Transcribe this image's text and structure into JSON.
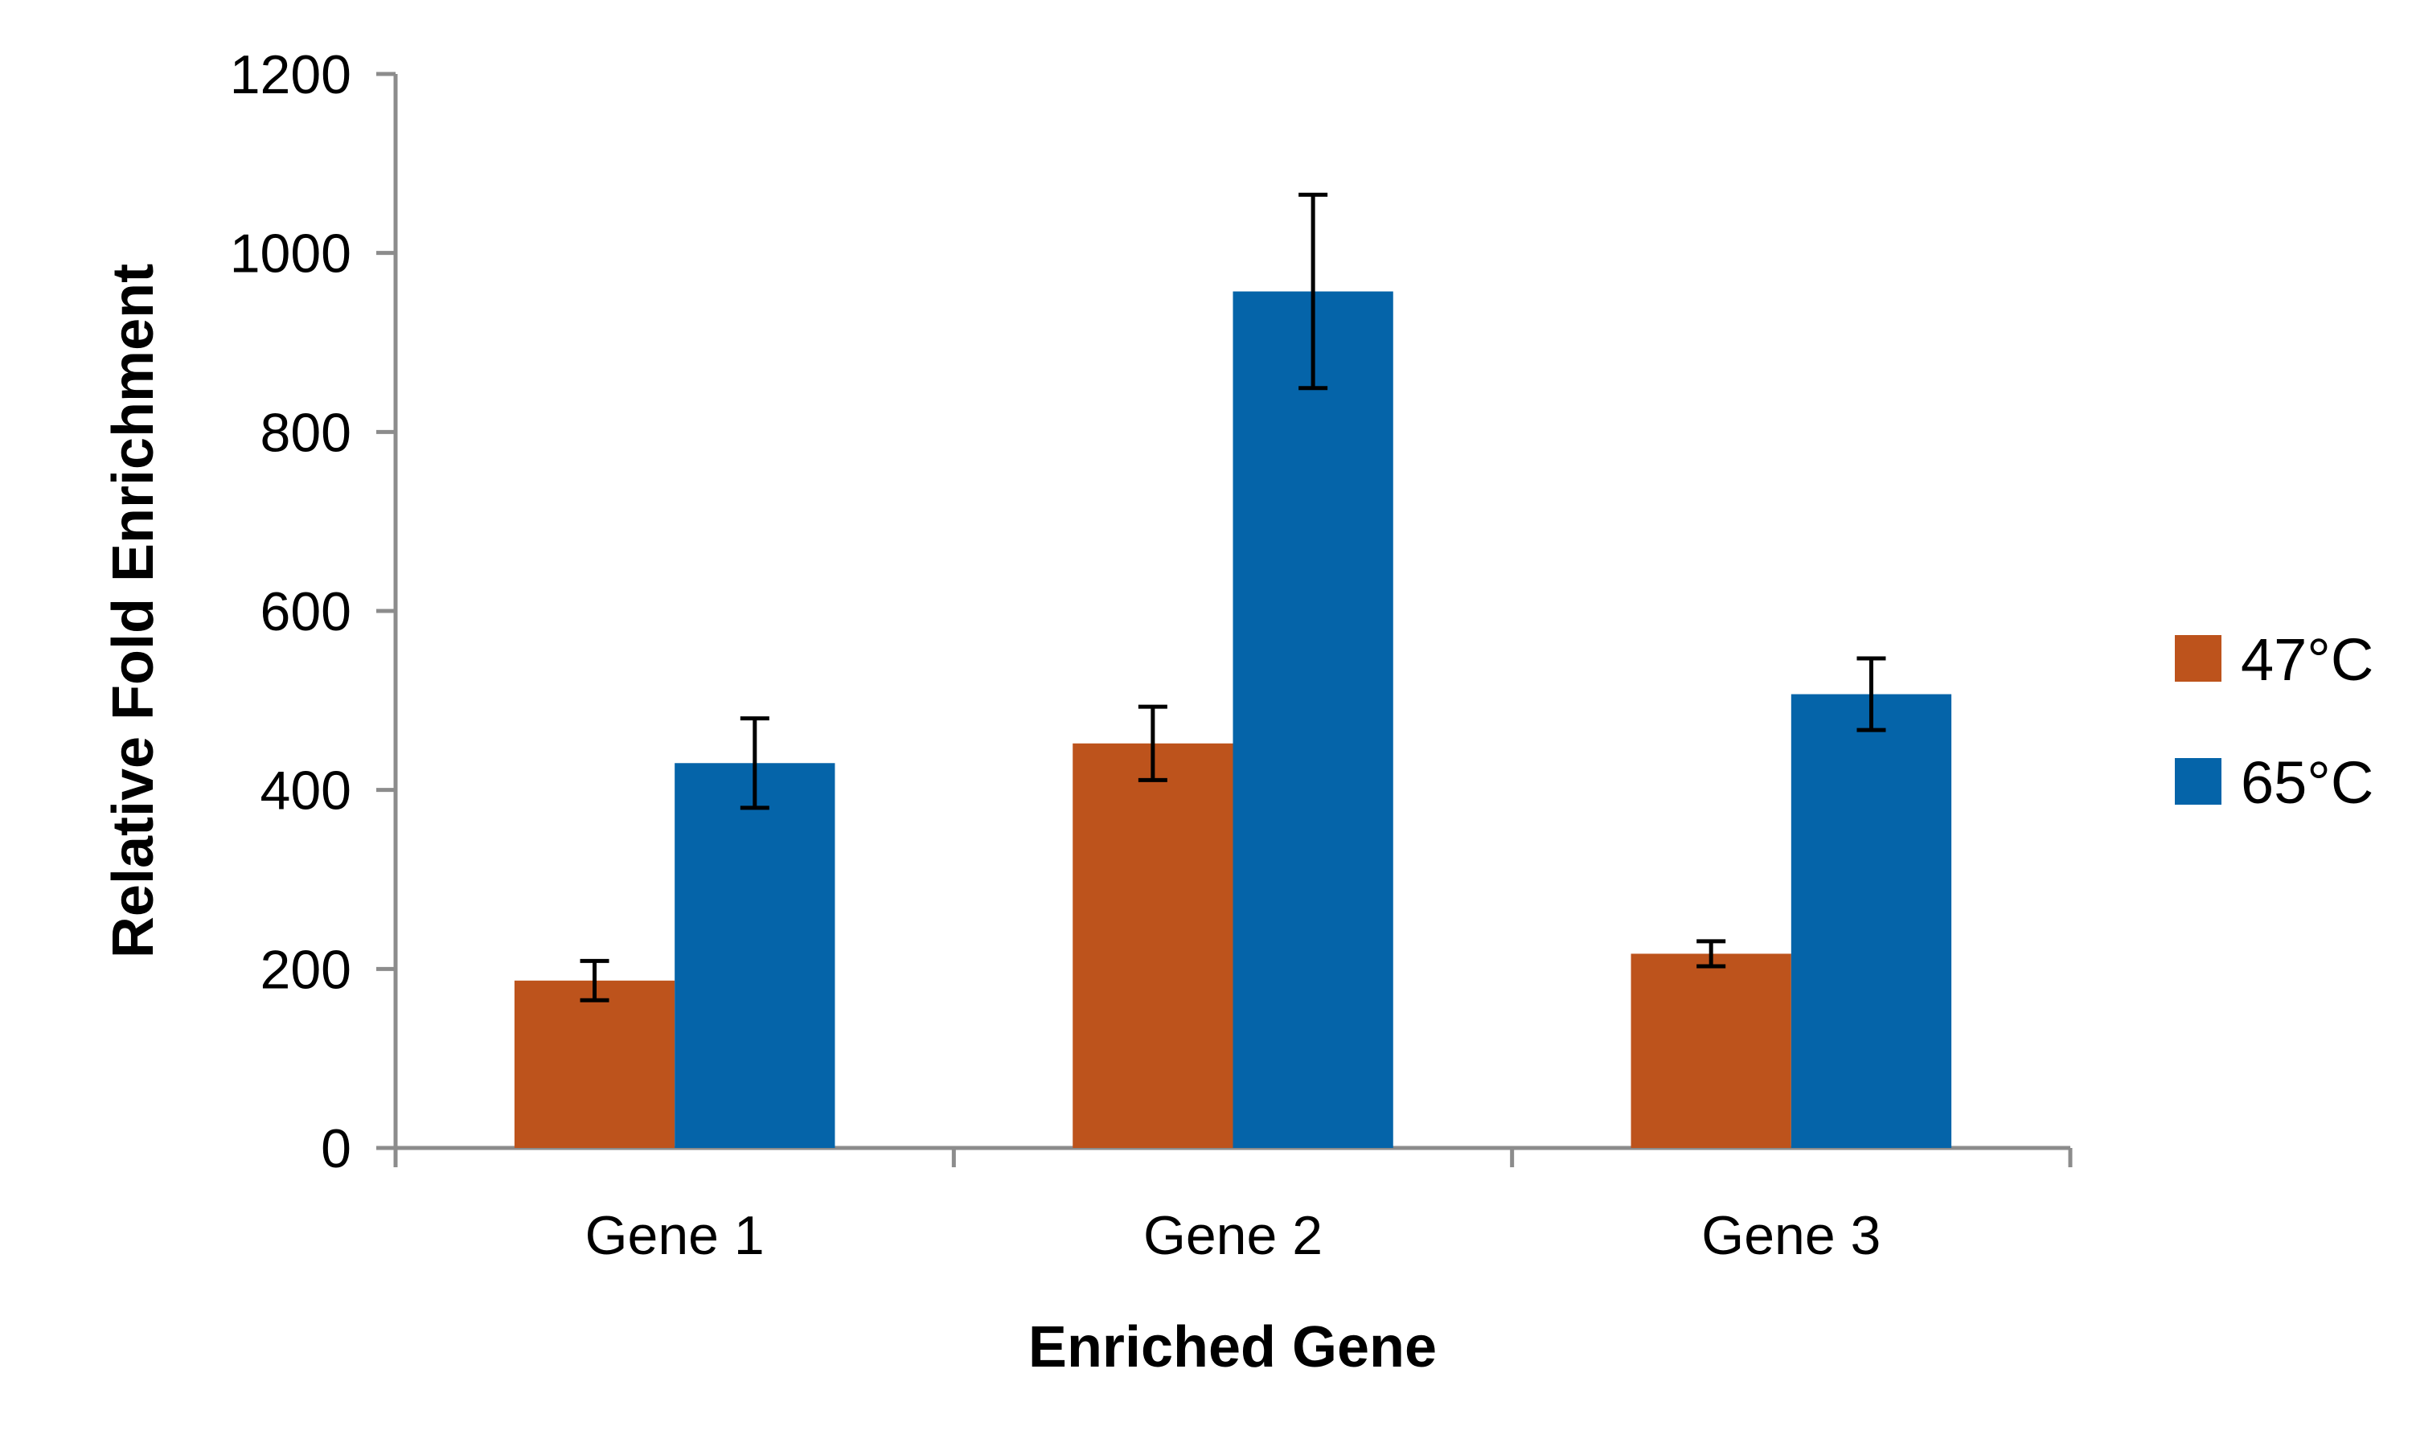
{
  "chart_data": {
    "type": "bar",
    "title": "",
    "xlabel": "Enriched Gene",
    "ylabel": "Relative Fold Enrichment",
    "categories": [
      "Gene 1",
      "Gene 2",
      "Gene 3"
    ],
    "ylim": [
      0,
      1200
    ],
    "yticks": [
      "0",
      "200",
      "400",
      "600",
      "800",
      "1000",
      "1200"
    ],
    "grid": false,
    "legend_position": "right",
    "series": [
      {
        "name": "47°C",
        "color": "#BD531C",
        "values": [
          187,
          452,
          217
        ],
        "error": [
          22,
          41,
          14
        ]
      },
      {
        "name": "65°C",
        "color": "#0564A9",
        "values": [
          430,
          957,
          507
        ],
        "error": [
          50,
          108,
          40
        ]
      }
    ]
  }
}
